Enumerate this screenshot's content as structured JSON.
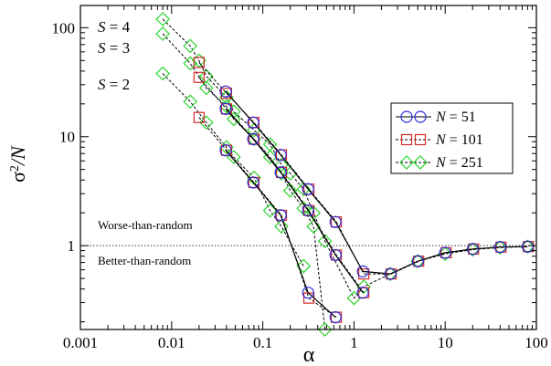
{
  "chart_data": {
    "type": "scatter",
    "title": "",
    "xlabel": "α",
    "ylabel_main": "σ",
    "ylabel_sup": "2",
    "ylabel_tail": "/N",
    "xscale": "log",
    "yscale": "log",
    "xlim": [
      0.001,
      100
    ],
    "ylim": [
      0.17,
      160
    ],
    "x_ticks": [
      {
        "value": 0.001,
        "label": "0.001"
      },
      {
        "value": 0.01,
        "label": "0.01"
      },
      {
        "value": 0.1,
        "label": "0.1"
      },
      {
        "value": 1,
        "label": "1"
      },
      {
        "value": 10,
        "label": "10"
      },
      {
        "value": 100,
        "label": "100"
      }
    ],
    "y_ticks": [
      {
        "value": 1,
        "label": "1"
      },
      {
        "value": 10,
        "label": "10"
      },
      {
        "value": 100,
        "label": "100"
      }
    ],
    "grid": false,
    "reference_line": {
      "y": 1,
      "style": "dotted"
    },
    "annotations": {
      "worse": "Worse-than-random",
      "better": "Better-than-random",
      "s_labels": [
        {
          "var": "S",
          "eq": " = ",
          "num": "4"
        },
        {
          "var": "S",
          "eq": " = ",
          "num": "3"
        },
        {
          "var": "S",
          "eq": " = ",
          "num": "2"
        }
      ]
    },
    "legend": {
      "placement": "right",
      "entries": [
        {
          "var": "N",
          "eq": " = ",
          "num": "51",
          "marker": "circle",
          "color": "#2a2ad8"
        },
        {
          "var": "N",
          "eq": " = ",
          "num": "101",
          "marker": "square",
          "color": "#d42a2a"
        },
        {
          "var": "N",
          "eq": " = ",
          "num": "251",
          "marker": "diamond",
          "color": "#2bd42b"
        }
      ]
    },
    "series": [
      {
        "group": "N = 251",
        "s": 4,
        "marker": "diamond",
        "color": "#2bd42b",
        "x": [
          0.008,
          0.016,
          0.02,
          0.024,
          0.04,
          0.048,
          0.08,
          0.12,
          0.16,
          0.2,
          0.28,
          0.36,
          0.48,
          1.0,
          1.28,
          2.5,
          5,
          10,
          20,
          40,
          80
        ],
        "y": [
          120,
          68,
          50,
          36,
          23,
          17,
          11.5,
          8.5,
          5.5,
          4.6,
          3.3,
          2.0,
          1.1,
          0.33,
          0.42,
          0.55,
          0.72,
          0.84,
          0.92,
          0.96,
          0.98
        ]
      },
      {
        "group": "N = 251",
        "s": 3,
        "marker": "diamond",
        "color": "#2bd42b",
        "x": [
          0.008,
          0.016,
          0.024,
          0.04,
          0.048,
          0.08,
          0.12,
          0.16,
          0.2,
          0.28,
          0.36,
          0.48
        ],
        "y": [
          88,
          47,
          28,
          19,
          14.5,
          9.5,
          6.5,
          4.6,
          3.2,
          2.2,
          1.5,
          0.17
        ]
      },
      {
        "group": "N = 251",
        "s": 2,
        "marker": "diamond",
        "color": "#2bd42b",
        "x": [
          0.008,
          0.016,
          0.024,
          0.04,
          0.048,
          0.08,
          0.12,
          0.16,
          0.28
        ],
        "y": [
          38,
          21,
          13.5,
          8.0,
          6.5,
          4.2,
          2.1,
          1.5,
          0.65
        ]
      },
      {
        "group": "N = 101",
        "s": 4,
        "marker": "square",
        "color": "#d42a2a",
        "x": [
          0.02,
          0.04,
          0.08,
          0.16,
          0.32,
          0.64,
          1.28,
          2.56,
          5.12,
          10.24,
          20.48,
          40.96,
          81.92
        ],
        "y": [
          48,
          25,
          13.5,
          6.8,
          3.3,
          1.65,
          0.55,
          0.55,
          0.72,
          0.86,
          0.93,
          0.97,
          0.98
        ]
      },
      {
        "group": "N = 101",
        "s": 3,
        "marker": "square",
        "color": "#d42a2a",
        "x": [
          0.02,
          0.04,
          0.08,
          0.16,
          0.32,
          0.64,
          1.28
        ],
        "y": [
          35,
          18,
          9.5,
          4.7,
          2.1,
          0.82,
          0.37
        ]
      },
      {
        "group": "N = 101",
        "s": 2,
        "marker": "square",
        "color": "#d42a2a",
        "x": [
          0.02,
          0.04,
          0.08,
          0.16,
          0.32,
          0.64
        ],
        "y": [
          15,
          7.5,
          3.8,
          1.9,
          0.33,
          0.22
        ]
      },
      {
        "group": "N = 51",
        "s": 4,
        "marker": "circle",
        "color": "#2a2ad8",
        "x": [
          0.0392,
          0.0784,
          0.157,
          0.314,
          0.627,
          1.25,
          2.51,
          5.02,
          10.0,
          20.1,
          40.2,
          80.4
        ],
        "y": [
          26,
          13.5,
          6.8,
          3.3,
          1.65,
          0.58,
          0.55,
          0.72,
          0.86,
          0.93,
          0.97,
          0.98
        ]
      },
      {
        "group": "N = 51",
        "s": 3,
        "marker": "circle",
        "color": "#2a2ad8",
        "x": [
          0.0392,
          0.0784,
          0.157,
          0.314,
          0.627,
          1.25
        ],
        "y": [
          18,
          9.5,
          4.7,
          2.1,
          0.82,
          0.37
        ]
      },
      {
        "group": "N = 51",
        "s": 2,
        "marker": "circle",
        "color": "#2a2ad8",
        "x": [
          0.0392,
          0.0784,
          0.157,
          0.314,
          0.627
        ],
        "y": [
          7.5,
          3.8,
          1.9,
          0.37,
          0.22
        ]
      }
    ]
  }
}
